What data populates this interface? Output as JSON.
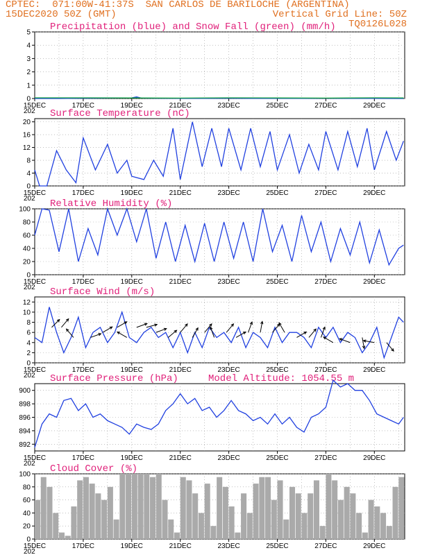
{
  "header": {
    "line1_left": "CPTEC:  071:00W-41:37S  SAN CARLOS DE BARILOCHE (ARGENTINA)",
    "line2_left": "15DEC2020 50Z (GMT)",
    "line2_right": "Vertical Grid Line: 50Z",
    "line3_right": "TQ0126L028"
  },
  "colors": {
    "header": "#e07020",
    "titles": "#e0207a",
    "series": "#2040e0",
    "snow": "#10a040",
    "cloud": "#aaaaaa",
    "arrows": "#000000"
  },
  "x_axis": {
    "tick_labels": [
      "15DEC",
      "17DEC",
      "19DEC",
      "21DEC",
      "23DEC",
      "25DEC",
      "27DEC",
      "29DEC"
    ],
    "year_fragment": "202"
  },
  "chart_data": [
    {
      "type": "line",
      "title": "Precipitation (blue) and Snow Fall (green) (mm/h)",
      "ylim": [
        0,
        5
      ],
      "yticks": [
        "0",
        "1",
        "2",
        "3",
        "4",
        "5"
      ],
      "x_unit": "days since 15DEC 00Z",
      "series": [
        {
          "name": "Precipitation",
          "x": [
            0,
            1,
            2,
            3,
            4,
            4.2,
            4.4,
            5,
            6,
            7,
            8,
            9,
            10,
            11,
            12,
            13,
            14,
            15.2
          ],
          "values": [
            0,
            0,
            0.02,
            0.03,
            0.05,
            0.12,
            0.03,
            0.02,
            0.01,
            0.01,
            0.02,
            0.01,
            0.01,
            0.01,
            0.02,
            0.01,
            0.01,
            0
          ]
        },
        {
          "name": "Snow Fall",
          "x": [
            0,
            2,
            4,
            6,
            8,
            10,
            12,
            14,
            15.2
          ],
          "values": [
            0.05,
            0.05,
            0.04,
            0.03,
            0.05,
            0.04,
            0.03,
            0.05,
            0.04
          ]
        }
      ]
    },
    {
      "type": "line",
      "title": "Surface Temperature (nC)",
      "ylim": [
        0,
        21
      ],
      "yticks": [
        "0",
        "4",
        "8",
        "12",
        "16",
        "20"
      ],
      "series": [
        {
          "name": "Temperature",
          "x": [
            0,
            0.2,
            0.5,
            0.9,
            1.3,
            1.7,
            2.0,
            2.5,
            3.0,
            3.4,
            3.8,
            4.0,
            4.5,
            4.9,
            5.3,
            5.7,
            6.0,
            6.5,
            6.9,
            7.3,
            7.7,
            8.0,
            8.5,
            8.9,
            9.3,
            9.7,
            10.0,
            10.5,
            10.9,
            11.3,
            11.7,
            12.0,
            12.5,
            12.9,
            13.3,
            13.7,
            14.0,
            14.5,
            14.9,
            15.2
          ],
          "values": [
            5,
            0,
            0,
            11,
            5,
            1,
            15,
            5,
            13,
            4,
            8,
            3,
            2,
            8,
            3,
            18,
            2,
            20,
            6,
            18,
            6,
            18,
            5,
            18,
            6,
            17,
            5,
            16,
            4,
            13,
            5,
            17,
            5,
            17,
            6,
            18,
            5,
            17,
            8,
            14
          ]
        }
      ]
    },
    {
      "type": "line",
      "title": "Relative Humidity (%)",
      "ylim": [
        0,
        100
      ],
      "yticks": [
        "0",
        "20",
        "40",
        "60",
        "80",
        "100"
      ],
      "series": [
        {
          "name": "Relative Humidity",
          "x": [
            0,
            0.3,
            0.6,
            1.0,
            1.4,
            1.8,
            2.2,
            2.6,
            3.0,
            3.4,
            3.8,
            4.2,
            4.6,
            5.0,
            5.4,
            5.8,
            6.2,
            6.6,
            7.0,
            7.4,
            7.8,
            8.2,
            8.6,
            9.0,
            9.4,
            9.8,
            10.2,
            10.6,
            11.0,
            11.4,
            11.8,
            12.2,
            12.6,
            13.0,
            13.4,
            13.8,
            14.2,
            14.6,
            15.0,
            15.2
          ],
          "values": [
            60,
            100,
            98,
            35,
            100,
            20,
            70,
            30,
            100,
            60,
            100,
            50,
            100,
            25,
            80,
            20,
            75,
            20,
            78,
            20,
            80,
            25,
            80,
            20,
            100,
            35,
            75,
            20,
            90,
            35,
            80,
            20,
            70,
            30,
            80,
            18,
            68,
            15,
            40,
            45
          ]
        }
      ]
    },
    {
      "type": "line",
      "title": "Surface Wind (m/s)",
      "ylim": [
        0,
        13
      ],
      "yticks": [
        "0",
        "2",
        "4",
        "6",
        "8",
        "10",
        "12"
      ],
      "series": [
        {
          "name": "Wind Speed",
          "x": [
            0,
            0.3,
            0.6,
            0.9,
            1.2,
            1.5,
            1.8,
            2.1,
            2.4,
            2.7,
            3.0,
            3.3,
            3.6,
            3.9,
            4.2,
            4.5,
            4.8,
            5.1,
            5.4,
            5.7,
            6.0,
            6.3,
            6.6,
            6.9,
            7.2,
            7.5,
            7.8,
            8.1,
            8.4,
            8.7,
            9.0,
            9.3,
            9.6,
            9.9,
            10.2,
            10.5,
            10.8,
            11.1,
            11.4,
            11.7,
            12.0,
            12.3,
            12.6,
            12.9,
            13.2,
            13.5,
            13.8,
            14.1,
            14.4,
            14.7,
            15.0,
            15.2
          ],
          "values": [
            5,
            4,
            11,
            6,
            2,
            5,
            9,
            3,
            6,
            7,
            4,
            6,
            10,
            5,
            4,
            6,
            7,
            5,
            6,
            3,
            6,
            2,
            6,
            3,
            7,
            5,
            6,
            4,
            7,
            3,
            6,
            5,
            3,
            7,
            4,
            6,
            6,
            5,
            3,
            7,
            5,
            7,
            4,
            6,
            5,
            2,
            4,
            7,
            1,
            5,
            9,
            8
          ]
        }
      ],
      "wind_arrows": [
        {
          "day": 0.7,
          "speed": 7,
          "dir": 45
        },
        {
          "day": 1.1,
          "speed": 7,
          "dir": 40
        },
        {
          "day": 1.6,
          "speed": 5,
          "dir": 320
        },
        {
          "day": 2.3,
          "speed": 5,
          "dir": 70
        },
        {
          "day": 2.8,
          "speed": 6,
          "dir": 60
        },
        {
          "day": 3.4,
          "speed": 7,
          "dir": 60
        },
        {
          "day": 3.8,
          "speed": 5,
          "dir": 300
        },
        {
          "day": 4.2,
          "speed": 7,
          "dir": 70
        },
        {
          "day": 4.6,
          "speed": 7,
          "dir": 75
        },
        {
          "day": 5.0,
          "speed": 6,
          "dir": 70
        },
        {
          "day": 5.5,
          "speed": 5,
          "dir": 50
        },
        {
          "day": 6.0,
          "speed": 6,
          "dir": 40
        },
        {
          "day": 6.5,
          "speed": 5,
          "dir": 30
        },
        {
          "day": 7.0,
          "speed": 6,
          "dir": 40
        },
        {
          "day": 7.4,
          "speed": 5,
          "dir": 340
        },
        {
          "day": 7.9,
          "speed": 6,
          "dir": 40
        },
        {
          "day": 8.3,
          "speed": 5,
          "dir": 60
        },
        {
          "day": 8.8,
          "speed": 6,
          "dir": 20
        },
        {
          "day": 9.3,
          "speed": 6,
          "dir": 10
        },
        {
          "day": 9.8,
          "speed": 6,
          "dir": 40
        },
        {
          "day": 10.3,
          "speed": 6,
          "dir": 330
        },
        {
          "day": 10.8,
          "speed": 5,
          "dir": 60
        },
        {
          "day": 11.3,
          "speed": 5,
          "dir": 40
        },
        {
          "day": 11.8,
          "speed": 5,
          "dir": 20
        },
        {
          "day": 12.3,
          "speed": 4,
          "dir": 300
        },
        {
          "day": 13.0,
          "speed": 4,
          "dir": 290
        },
        {
          "day": 13.5,
          "speed": 5,
          "dir": 170
        },
        {
          "day": 14.0,
          "speed": 4,
          "dir": 280
        },
        {
          "day": 14.5,
          "speed": 4,
          "dir": 140
        }
      ]
    },
    {
      "type": "line",
      "title": "Surface Pressure (hPa)",
      "annotation": "Model Altitude: 1054.55 m",
      "ylim": [
        891,
        901
      ],
      "yticks": [
        "892",
        "894",
        "896",
        "898",
        "900"
      ],
      "series": [
        {
          "name": "Surface Pressure",
          "x": [
            0,
            0.3,
            0.6,
            0.9,
            1.2,
            1.5,
            1.8,
            2.1,
            2.4,
            2.7,
            3.0,
            3.3,
            3.6,
            3.9,
            4.2,
            4.5,
            4.8,
            5.1,
            5.4,
            5.7,
            6.0,
            6.3,
            6.6,
            6.9,
            7.2,
            7.5,
            7.8,
            8.1,
            8.4,
            8.7,
            9.0,
            9.3,
            9.6,
            9.9,
            10.2,
            10.5,
            10.8,
            11.1,
            11.4,
            11.7,
            12.0,
            12.3,
            12.6,
            12.9,
            13.2,
            13.5,
            13.8,
            14.1,
            14.4,
            14.7,
            15.0,
            15.2
          ],
          "values": [
            891.5,
            895,
            896.5,
            896,
            898.5,
            898.8,
            897,
            898,
            896,
            896.5,
            895.5,
            895,
            894.5,
            893.5,
            895,
            894.5,
            894.2,
            895,
            897,
            898,
            899.5,
            898,
            898.8,
            897,
            897.5,
            896,
            897,
            898.5,
            897,
            896.5,
            895.5,
            896,
            895,
            896.5,
            895,
            896,
            894.5,
            893.8,
            896,
            896.5,
            897.5,
            901.5,
            900.5,
            901,
            900,
            900,
            898.5,
            896.5,
            896,
            895.5,
            895,
            896
          ]
        }
      ]
    },
    {
      "type": "bar",
      "title": "Cloud Cover (%)",
      "ylim": [
        0,
        100
      ],
      "yticks": [
        "0",
        "20",
        "40",
        "60",
        "80",
        "100"
      ],
      "series": [
        {
          "name": "Cloud Cover",
          "x": [
            0,
            0.25,
            0.5,
            0.75,
            1.0,
            1.25,
            1.5,
            1.75,
            2.0,
            2.25,
            2.5,
            2.75,
            3.0,
            3.25,
            3.5,
            3.75,
            4.0,
            4.25,
            4.5,
            4.75,
            5.0,
            5.25,
            5.5,
            5.75,
            6.0,
            6.25,
            6.5,
            6.75,
            7.0,
            7.25,
            7.5,
            7.75,
            8.0,
            8.25,
            8.5,
            8.75,
            9.0,
            9.25,
            9.5,
            9.75,
            10.0,
            10.25,
            10.5,
            10.75,
            11.0,
            11.25,
            11.5,
            11.75,
            12.0,
            12.25,
            12.5,
            12.75,
            13.0,
            13.25,
            13.5,
            13.75,
            14.0,
            14.25,
            14.5,
            14.75,
            15.0
          ],
          "values": [
            60,
            95,
            80,
            40,
            10,
            5,
            50,
            90,
            95,
            85,
            70,
            60,
            80,
            30,
            100,
            100,
            100,
            100,
            100,
            95,
            100,
            60,
            30,
            10,
            95,
            90,
            70,
            40,
            85,
            20,
            95,
            80,
            50,
            10,
            70,
            40,
            85,
            95,
            95,
            60,
            90,
            30,
            80,
            70,
            40,
            70,
            90,
            20,
            100,
            90,
            60,
            80,
            70,
            40,
            10,
            60,
            50,
            40,
            20,
            80,
            95
          ]
        }
      ]
    }
  ]
}
